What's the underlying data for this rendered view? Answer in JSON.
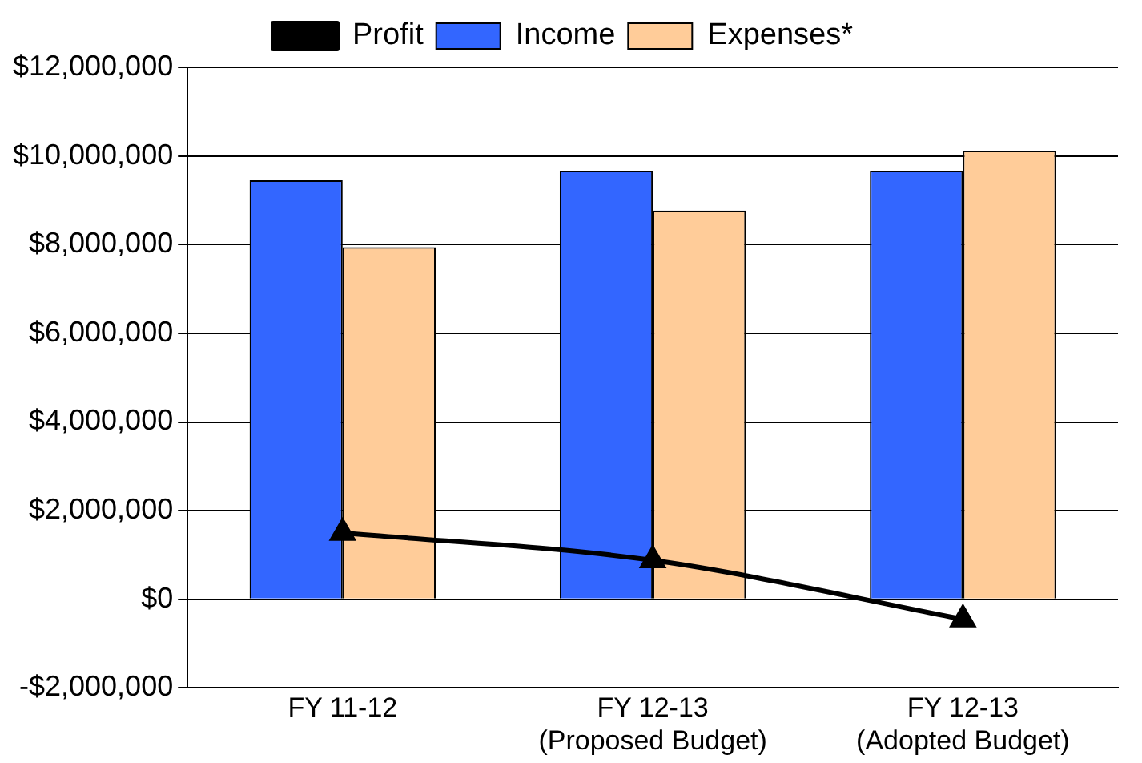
{
  "chart_data": {
    "type": "bar",
    "categories": [
      "FY 11-12",
      "FY 12-13\n(Proposed Budget)",
      "FY 12-13\n(Adopted Budget)"
    ],
    "series": [
      {
        "name": "Income",
        "color": "#3366ff",
        "values": [
          9450000,
          9670000,
          9670000
        ]
      },
      {
        "name": "Expenses*",
        "color": "#ffcc99",
        "values": [
          7940000,
          8770000,
          10120000
        ]
      },
      {
        "name": "Profit",
        "type": "line",
        "color": "#000000",
        "marker": "triangle",
        "values": [
          1500000,
          880000,
          -450000
        ]
      }
    ],
    "ylim": [
      -2000000,
      12000000
    ],
    "yticks": [
      {
        "value": -2000000,
        "label": "-$2,000,000"
      },
      {
        "value": 0,
        "label": "$0"
      },
      {
        "value": 2000000,
        "label": "$2,000,000"
      },
      {
        "value": 4000000,
        "label": "$4,000,000"
      },
      {
        "value": 6000000,
        "label": "$6,000,000"
      },
      {
        "value": 8000000,
        "label": "$8,000,000"
      },
      {
        "value": 10000000,
        "label": "$10,000,000"
      },
      {
        "value": 12000000,
        "label": "$12,000,000"
      }
    ],
    "grid": "y",
    "legend": "top"
  }
}
